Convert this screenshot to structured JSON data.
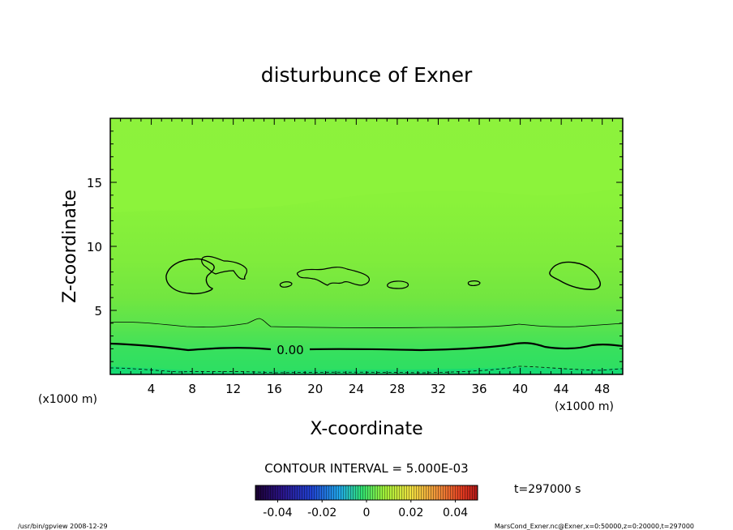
{
  "chart_data": {
    "type": "contour",
    "title": "disturbunce of Exner",
    "xlabel": "X-coordinate",
    "ylabel": "Z-coordinate",
    "x_unit_left": "(x1000 m)",
    "x_unit_right": "(x1000 m)",
    "xlim": [
      0,
      50
    ],
    "ylim": [
      0,
      20
    ],
    "x_ticks": [
      4,
      8,
      12,
      16,
      20,
      24,
      28,
      32,
      36,
      40,
      44,
      48
    ],
    "x_tick_labels": [
      "4",
      "8",
      "12",
      "16",
      "20",
      "24",
      "28",
      "32",
      "36",
      "40",
      "44",
      "48"
    ],
    "y_ticks": [
      5,
      10,
      15
    ],
    "y_tick_labels": [
      "5",
      "10",
      "15"
    ],
    "contour_label": "0.00",
    "contour_interval_text": "CONTOUR INTERVAL = 5.000E-03",
    "time_text": "t=297000 s",
    "colorbar": {
      "range": [
        -0.05,
        0.05
      ],
      "ticks": [
        -0.04,
        -0.02,
        0,
        0.02,
        0.04
      ],
      "tick_labels": [
        "-0.04",
        "-0.02",
        "0",
        "0.02",
        "0.04"
      ]
    },
    "footer_left": "/usr/bin/gpview   2008-12-29",
    "footer_right": "MarsCond_Exner.nc@Exner,x=0:50000,z=0:20000,t=297000",
    "colors": {
      "field_main": "#7ee83a",
      "field_upper": "#8af23a",
      "field_low": "#55e25a",
      "field_bottom": "#18dc6e"
    }
  }
}
